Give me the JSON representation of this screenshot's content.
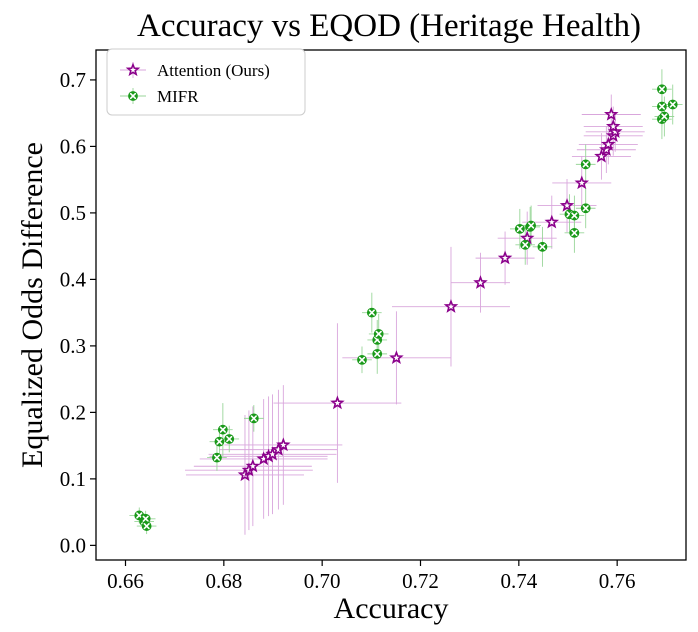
{
  "chart_data": {
    "type": "scatter",
    "title": "Accuracy vs EQOD (Heritage Health)",
    "xlabel": "Accuracy",
    "ylabel": "Equalized Odds Difference",
    "xlim": [
      0.654,
      0.774
    ],
    "ylim": [
      -0.022,
      0.745
    ],
    "x_ticks": [
      0.66,
      0.68,
      0.7,
      0.72,
      0.74,
      0.76
    ],
    "x_tick_labels": [
      "0.66",
      "0.68",
      "0.70",
      "0.72",
      "0.74",
      "0.76"
    ],
    "y_ticks": [
      0.0,
      0.1,
      0.2,
      0.3,
      0.4,
      0.5,
      0.6,
      0.7
    ],
    "y_tick_labels": [
      "0.0",
      "0.1",
      "0.2",
      "0.3",
      "0.4",
      "0.5",
      "0.6",
      "0.7"
    ],
    "grid": false,
    "legend_position": "top-left",
    "series": [
      {
        "name": "Attention (Ours)",
        "marker": "star",
        "color": "#8b008b",
        "errorbar_color": "#d9a6dc",
        "points": [
          {
            "x": 0.6843,
            "y": 0.106,
            "xerr": 0.012,
            "yerr": 0.09
          },
          {
            "x": 0.6851,
            "y": 0.113,
            "xerr": 0.013,
            "yerr": 0.09
          },
          {
            "x": 0.6859,
            "y": 0.119,
            "xerr": 0.012,
            "yerr": 0.09
          },
          {
            "x": 0.6881,
            "y": 0.13,
            "xerr": 0.013,
            "yerr": 0.09
          },
          {
            "x": 0.6891,
            "y": 0.134,
            "xerr": 0.012,
            "yerr": 0.09
          },
          {
            "x": 0.6899,
            "y": 0.137,
            "xerr": 0.013,
            "yerr": 0.09
          },
          {
            "x": 0.6911,
            "y": 0.144,
            "xerr": 0.012,
            "yerr": 0.09
          },
          {
            "x": 0.6921,
            "y": 0.151,
            "xerr": 0.012,
            "yerr": 0.09
          },
          {
            "x": 0.7031,
            "y": 0.214,
            "xerr": 0.013,
            "yerr": 0.12
          },
          {
            "x": 0.7151,
            "y": 0.282,
            "xerr": 0.011,
            "yerr": 0.07
          },
          {
            "x": 0.7262,
            "y": 0.359,
            "xerr": 0.012,
            "yerr": 0.09
          },
          {
            "x": 0.7322,
            "y": 0.395,
            "xerr": 0.006,
            "yerr": 0.045
          },
          {
            "x": 0.7372,
            "y": 0.432,
            "xerr": 0.006,
            "yerr": 0.04
          },
          {
            "x": 0.7417,
            "y": 0.462,
            "xerr": 0.006,
            "yerr": 0.04
          },
          {
            "x": 0.7467,
            "y": 0.486,
            "xerr": 0.006,
            "yerr": 0.04
          },
          {
            "x": 0.7498,
            "y": 0.511,
            "xerr": 0.006,
            "yerr": 0.04
          },
          {
            "x": 0.7528,
            "y": 0.545,
            "xerr": 0.006,
            "yerr": 0.04
          },
          {
            "x": 0.7568,
            "y": 0.585,
            "xerr": 0.006,
            "yerr": 0.035
          },
          {
            "x": 0.7578,
            "y": 0.595,
            "xerr": 0.006,
            "yerr": 0.035
          },
          {
            "x": 0.7582,
            "y": 0.603,
            "xerr": 0.006,
            "yerr": 0.03
          },
          {
            "x": 0.7592,
            "y": 0.616,
            "xerr": 0.006,
            "yerr": 0.03
          },
          {
            "x": 0.7596,
            "y": 0.622,
            "xerr": 0.006,
            "yerr": 0.03
          },
          {
            "x": 0.7592,
            "y": 0.63,
            "xerr": 0.006,
            "yerr": 0.03
          },
          {
            "x": 0.7588,
            "y": 0.648,
            "xerr": 0.006,
            "yerr": 0.03
          }
        ]
      },
      {
        "name": "MIFR",
        "marker": "x-circle",
        "color": "#1a9a1a",
        "errorbar_color": "#99d699",
        "points": [
          {
            "x": 0.6628,
            "y": 0.045,
            "xerr": 0.002,
            "yerr": 0.012
          },
          {
            "x": 0.6638,
            "y": 0.036,
            "xerr": 0.002,
            "yerr": 0.012
          },
          {
            "x": 0.6641,
            "y": 0.04,
            "xerr": 0.002,
            "yerr": 0.012
          },
          {
            "x": 0.6643,
            "y": 0.029,
            "xerr": 0.002,
            "yerr": 0.012
          },
          {
            "x": 0.6786,
            "y": 0.132,
            "xerr": 0.002,
            "yerr": 0.02
          },
          {
            "x": 0.6791,
            "y": 0.156,
            "xerr": 0.002,
            "yerr": 0.02
          },
          {
            "x": 0.6798,
            "y": 0.174,
            "xerr": 0.002,
            "yerr": 0.04
          },
          {
            "x": 0.6811,
            "y": 0.16,
            "xerr": 0.002,
            "yerr": 0.02
          },
          {
            "x": 0.6861,
            "y": 0.191,
            "xerr": 0.002,
            "yerr": 0.02
          },
          {
            "x": 0.7081,
            "y": 0.279,
            "xerr": 0.002,
            "yerr": 0.02
          },
          {
            "x": 0.7101,
            "y": 0.35,
            "xerr": 0.002,
            "yerr": 0.03
          },
          {
            "x": 0.7112,
            "y": 0.288,
            "xerr": 0.002,
            "yerr": 0.03
          },
          {
            "x": 0.7112,
            "y": 0.309,
            "xerr": 0.002,
            "yerr": 0.03
          },
          {
            "x": 0.7115,
            "y": 0.318,
            "xerr": 0.002,
            "yerr": 0.03
          },
          {
            "x": 0.7402,
            "y": 0.476,
            "xerr": 0.002,
            "yerr": 0.03
          },
          {
            "x": 0.7413,
            "y": 0.452,
            "xerr": 0.002,
            "yerr": 0.03
          },
          {
            "x": 0.7423,
            "y": 0.479,
            "xerr": 0.002,
            "yerr": 0.03
          },
          {
            "x": 0.7425,
            "y": 0.481,
            "xerr": 0.002,
            "yerr": 0.03
          },
          {
            "x": 0.7448,
            "y": 0.449,
            "xerr": 0.002,
            "yerr": 0.03
          },
          {
            "x": 0.7503,
            "y": 0.498,
            "xerr": 0.002,
            "yerr": 0.03
          },
          {
            "x": 0.7513,
            "y": 0.496,
            "xerr": 0.002,
            "yerr": 0.03
          },
          {
            "x": 0.7513,
            "y": 0.47,
            "xerr": 0.002,
            "yerr": 0.03
          },
          {
            "x": 0.7536,
            "y": 0.573,
            "xerr": 0.002,
            "yerr": 0.03
          },
          {
            "x": 0.7536,
            "y": 0.507,
            "xerr": 0.002,
            "yerr": 0.03
          },
          {
            "x": 0.7691,
            "y": 0.686,
            "xerr": 0.002,
            "yerr": 0.03
          },
          {
            "x": 0.7691,
            "y": 0.66,
            "xerr": 0.002,
            "yerr": 0.03
          },
          {
            "x": 0.7691,
            "y": 0.641,
            "xerr": 0.002,
            "yerr": 0.03
          },
          {
            "x": 0.7696,
            "y": 0.645,
            "xerr": 0.002,
            "yerr": 0.03
          },
          {
            "x": 0.7713,
            "y": 0.663,
            "xerr": 0.002,
            "yerr": 0.03
          }
        ]
      }
    ]
  }
}
